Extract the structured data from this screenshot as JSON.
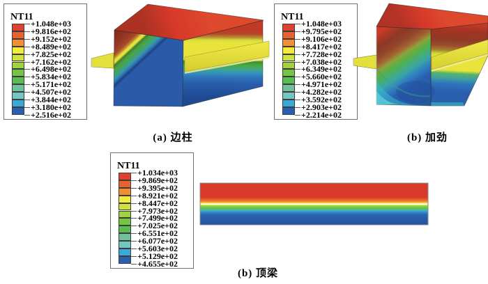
{
  "figure": {
    "background": "#ffffff",
    "panels": [
      {
        "caption": "(a) 边柱",
        "legend_title": "NT11",
        "legend_values": [
          "+1.048e+03",
          "+9.816e+02",
          "+9.152e+02",
          "+8.489e+02",
          "+7.825e+02",
          "+7.162e+02",
          "+6.498e+02",
          "+5.834e+02",
          "+5.171e+02",
          "+4.507e+02",
          "+3.844e+02",
          "+3.180e+02",
          "+2.516e+02"
        ]
      },
      {
        "caption": "(b) 加劲",
        "legend_title": "NT11",
        "legend_values": [
          "+1.048e+03",
          "+9.795e+02",
          "+9.106e+02",
          "+8.417e+02",
          "+7.728e+02",
          "+7.038e+02",
          "+6.349e+02",
          "+5.660e+02",
          "+4.971e+02",
          "+4.282e+02",
          "+3.592e+02",
          "+2.903e+02",
          "+2.214e+02"
        ]
      },
      {
        "caption": "(b) 顶梁",
        "legend_title": "NT11",
        "legend_values": [
          "+1.034e+03",
          "+9.869e+02",
          "+9.395e+02",
          "+8.921e+02",
          "+8.447e+02",
          "+7.973e+02",
          "+7.499e+02",
          "+7.025e+02",
          "+6.551e+02",
          "+6.077e+02",
          "+5.603e+02",
          "+5.129e+02",
          "+4.655e+02"
        ]
      }
    ]
  },
  "colors": {
    "spectrum": [
      "#e0402e",
      "#e8622f",
      "#f08f33",
      "#f2ea3d",
      "#cee13c",
      "#a0d43e",
      "#74c544",
      "#58bd52",
      "#6ec19a",
      "#72c7c5",
      "#3aa8d8",
      "#2a5fae"
    ],
    "legend_border": "#6f6f6f",
    "flange_yellow": "#e4e03b",
    "hot_red": "#d6392a",
    "cold_blue": "#2a5fae"
  },
  "chart_data": [
    {
      "type": "heatmap",
      "title": "NT11",
      "caption": "(a) 边柱",
      "legend_position": "left",
      "tick_labels": [
        "+1.048e+03",
        "+9.816e+02",
        "+9.152e+02",
        "+8.489e+02",
        "+7.825e+02",
        "+7.162e+02",
        "+6.498e+02",
        "+5.834e+02",
        "+5.171e+02",
        "+4.507e+02",
        "+3.844e+02",
        "+3.180e+02",
        "+2.516e+02"
      ],
      "legend_ticks": [
        1048.0,
        981.6,
        915.2,
        848.9,
        782.5,
        716.2,
        649.8,
        583.4,
        517.1,
        450.7,
        384.4,
        318.0,
        251.6
      ],
      "value_range": [
        251.6,
        1048.0
      ],
      "colormap": [
        "#e0402e",
        "#e8622f",
        "#f08f33",
        "#f2ea3d",
        "#cee13c",
        "#a0d43e",
        "#74c544",
        "#58bd52",
        "#6ec19a",
        "#72c7c5",
        "#3aa8d8",
        "#2a5fae"
      ]
    },
    {
      "type": "heatmap",
      "title": "NT11",
      "caption": "(b) 加劲",
      "legend_position": "left",
      "tick_labels": [
        "+1.048e+03",
        "+9.795e+02",
        "+9.106e+02",
        "+8.417e+02",
        "+7.728e+02",
        "+7.038e+02",
        "+6.349e+02",
        "+5.660e+02",
        "+4.971e+02",
        "+4.282e+02",
        "+3.592e+02",
        "+2.903e+02",
        "+2.214e+02"
      ],
      "legend_ticks": [
        1048.0,
        979.5,
        910.6,
        841.7,
        772.8,
        703.8,
        634.9,
        566.0,
        497.1,
        428.2,
        359.2,
        290.3,
        221.4
      ],
      "value_range": [
        221.4,
        1048.0
      ],
      "colormap": [
        "#e0402e",
        "#e8622f",
        "#f08f33",
        "#f2ea3d",
        "#cee13c",
        "#a0d43e",
        "#74c544",
        "#58bd52",
        "#6ec19a",
        "#72c7c5",
        "#3aa8d8",
        "#2a5fae"
      ]
    },
    {
      "type": "heatmap",
      "title": "NT11",
      "caption": "(b) 顶梁",
      "legend_position": "left",
      "tick_labels": [
        "+1.034e+03",
        "+9.869e+02",
        "+9.395e+02",
        "+8.921e+02",
        "+8.447e+02",
        "+7.973e+02",
        "+7.499e+02",
        "+7.025e+02",
        "+6.551e+02",
        "+6.077e+02",
        "+5.603e+02",
        "+5.129e+02",
        "+4.655e+02"
      ],
      "legend_ticks": [
        1034.0,
        986.9,
        939.5,
        892.1,
        844.7,
        797.3,
        749.9,
        702.5,
        655.1,
        607.7,
        560.3,
        512.9,
        465.5
      ],
      "value_range": [
        465.5,
        1034.0
      ],
      "colormap": [
        "#e0402e",
        "#e8622f",
        "#f08f33",
        "#f2ea3d",
        "#cee13c",
        "#a0d43e",
        "#74c544",
        "#58bd52",
        "#6ec19a",
        "#72c7c5",
        "#3aa8d8",
        "#2a5fae"
      ]
    }
  ]
}
